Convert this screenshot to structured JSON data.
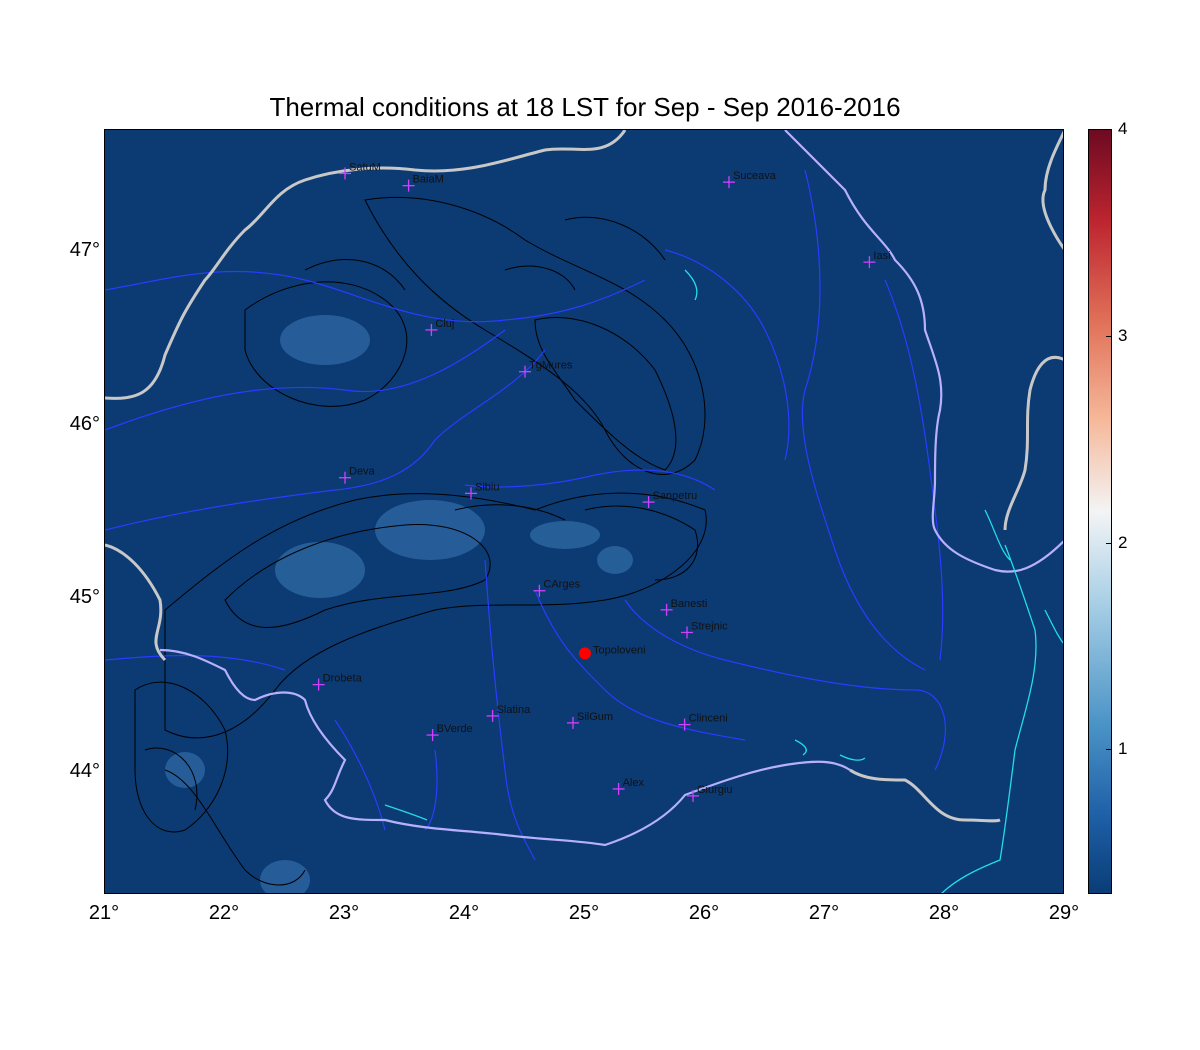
{
  "title": "Thermal conditions at 18 LST for Sep - Sep  2016-2016",
  "map": {
    "lon_range": [
      21,
      29
    ],
    "lat_range": [
      43.3,
      47.7
    ],
    "background_color": "#0c3a73",
    "border_color": "#c8c8c8",
    "river_color": "#2a3cff",
    "coast_color": "#22dde8",
    "contour_color": "#000000",
    "x_ticks": [
      "21°",
      "22°",
      "23°",
      "24°",
      "25°",
      "26°",
      "27°",
      "28°",
      "29°"
    ],
    "y_ticks": [
      "44°",
      "45°",
      "46°",
      "47°"
    ]
  },
  "colorbar": {
    "labels": [
      "1",
      "2",
      "3",
      "4"
    ],
    "min": 0.3,
    "max": 4
  },
  "stations": [
    {
      "name": "SatuM",
      "lon": 23.0,
      "lat": 47.45
    },
    {
      "name": "BaiaM",
      "lon": 23.53,
      "lat": 47.38
    },
    {
      "name": "Suceava",
      "lon": 26.2,
      "lat": 47.4
    },
    {
      "name": "Iasi",
      "lon": 27.37,
      "lat": 46.94
    },
    {
      "name": "Cluj",
      "lon": 23.72,
      "lat": 46.55
    },
    {
      "name": "TgMures",
      "lon": 24.5,
      "lat": 46.31
    },
    {
      "name": "Deva",
      "lon": 23.0,
      "lat": 45.7
    },
    {
      "name": "Sibiu",
      "lon": 24.05,
      "lat": 45.61
    },
    {
      "name": "Sanpetru",
      "lon": 25.53,
      "lat": 45.56
    },
    {
      "name": "CArges",
      "lon": 24.62,
      "lat": 45.05
    },
    {
      "name": "Banesti",
      "lon": 25.68,
      "lat": 44.94
    },
    {
      "name": "Strejnic",
      "lon": 25.85,
      "lat": 44.81
    },
    {
      "name": "Drobeta",
      "lon": 22.78,
      "lat": 44.51
    },
    {
      "name": "Slatina",
      "lon": 24.23,
      "lat": 44.33
    },
    {
      "name": "SilGum",
      "lon": 24.9,
      "lat": 44.29
    },
    {
      "name": "BVerde",
      "lon": 23.73,
      "lat": 44.22
    },
    {
      "name": "Clinceni",
      "lon": 25.83,
      "lat": 44.28
    },
    {
      "name": "Alex",
      "lon": 25.28,
      "lat": 43.91
    },
    {
      "name": "Giurgiu",
      "lon": 25.9,
      "lat": 43.87
    }
  ],
  "highlight": {
    "name": "Topoloveni",
    "lon": 25.0,
    "lat": 44.69,
    "color": "#ff0000"
  }
}
